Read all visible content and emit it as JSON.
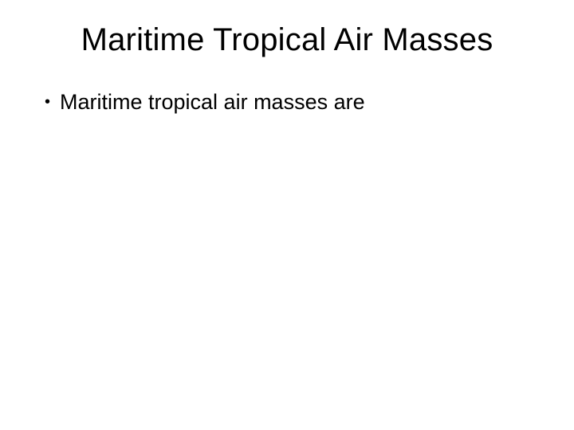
{
  "slide": {
    "title": "Maritime Tropical Air Masses",
    "bullets": [
      {
        "marker": "•",
        "text": "Maritime tropical air masses are"
      }
    ],
    "background_color": "#ffffff",
    "text_color": "#000000",
    "title_fontsize": 40,
    "body_fontsize": 27
  }
}
